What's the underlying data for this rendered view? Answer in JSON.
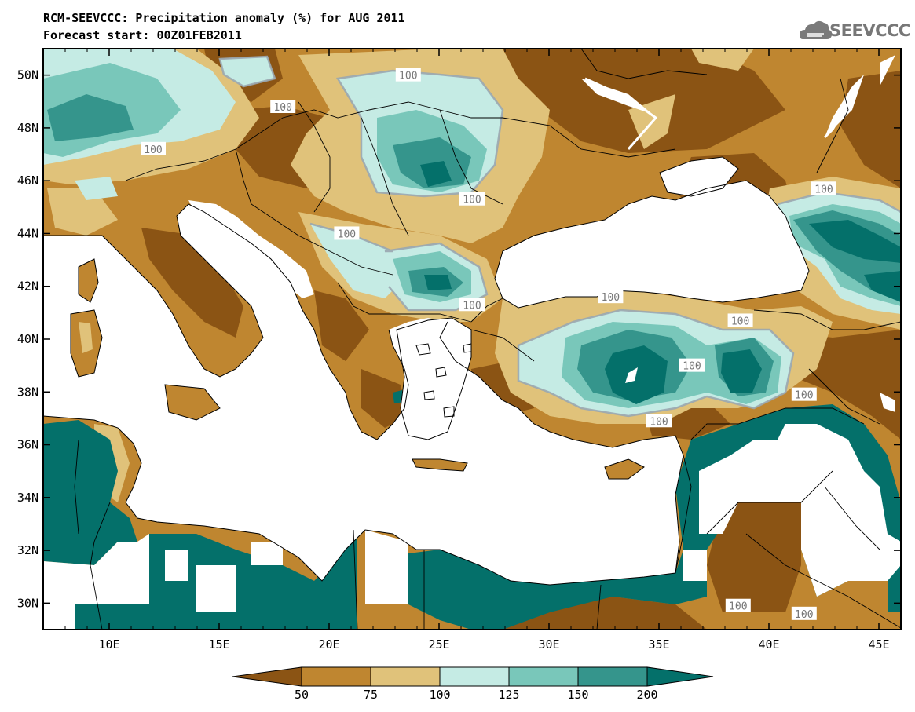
{
  "header": {
    "title_line1": "RCM-SEEVCCC: Precipitation anomaly (%) for AUG 2011",
    "title_line2": "Forecast start: 00Z01FEB2011",
    "logo_text": "SEEVCCC"
  },
  "map": {
    "lon_range": [
      7,
      46
    ],
    "lat_range": [
      29,
      51
    ],
    "lat_ticks": [
      {
        "value": 30,
        "label": "30N"
      },
      {
        "value": 32,
        "label": "32N"
      },
      {
        "value": 34,
        "label": "34N"
      },
      {
        "value": 36,
        "label": "36N"
      },
      {
        "value": 38,
        "label": "38N"
      },
      {
        "value": 40,
        "label": "40N"
      },
      {
        "value": 42,
        "label": "42N"
      },
      {
        "value": 44,
        "label": "44N"
      },
      {
        "value": 46,
        "label": "46N"
      },
      {
        "value": 48,
        "label": "48N"
      },
      {
        "value": 50,
        "label": "50N"
      }
    ],
    "lon_ticks": [
      {
        "value": 10,
        "label": "10E"
      },
      {
        "value": 15,
        "label": "15E"
      },
      {
        "value": 20,
        "label": "20E"
      },
      {
        "value": 25,
        "label": "25E"
      },
      {
        "value": 30,
        "label": "30E"
      },
      {
        "value": 35,
        "label": "35E"
      },
      {
        "value": 40,
        "label": "40E"
      },
      {
        "value": 45,
        "label": "45E"
      }
    ],
    "contour_labels": [
      {
        "text": "100",
        "lon": 23.6,
        "lat": 50.0
      },
      {
        "text": "100",
        "lon": 17.9,
        "lat": 48.8
      },
      {
        "text": "100",
        "lon": 12.0,
        "lat": 47.2
      },
      {
        "text": "100",
        "lon": 26.5,
        "lat": 45.3
      },
      {
        "text": "100",
        "lon": 20.8,
        "lat": 44.0
      },
      {
        "text": "100",
        "lon": 26.5,
        "lat": 41.3
      },
      {
        "text": "100",
        "lon": 32.8,
        "lat": 41.6
      },
      {
        "text": "100",
        "lon": 38.7,
        "lat": 40.7
      },
      {
        "text": "100",
        "lon": 42.5,
        "lat": 45.7
      },
      {
        "text": "100",
        "lon": 36.5,
        "lat": 39.0
      },
      {
        "text": "100",
        "lon": 41.6,
        "lat": 37.9
      },
      {
        "text": "100",
        "lon": 35.0,
        "lat": 36.9
      },
      {
        "text": "100",
        "lon": 38.6,
        "lat": 29.9
      },
      {
        "text": "100",
        "lon": 41.6,
        "lat": 29.6
      }
    ]
  },
  "colorbar": {
    "labels": [
      "50",
      "75",
      "100",
      "125",
      "150",
      "200"
    ],
    "colors": [
      "#8b5414",
      "#bf8630",
      "#e0c27a",
      "#c5ebe4",
      "#79c7ba",
      "#35958c",
      "#04706a"
    ]
  },
  "colors": {
    "lt50": "#8b5414",
    "r50_75": "#bf8630",
    "r75_100": "#e0c27a",
    "r100_125": "#c5ebe4",
    "r125_150": "#79c7ba",
    "r150_200": "#35958c",
    "gt200": "#04706a",
    "contour": "#9aa7b0"
  }
}
